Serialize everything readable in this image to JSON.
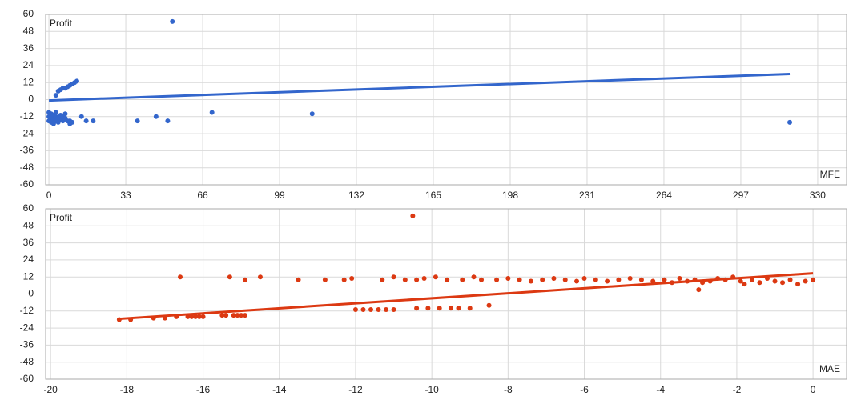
{
  "chart_data": [
    {
      "type": "scatter",
      "y_label": "Profit",
      "x_label": "MFE",
      "color": "#3366cc",
      "grid": true,
      "xlim": [
        -1.4,
        342.4
      ],
      "xticks": [
        0,
        33,
        66,
        99,
        132,
        165,
        198,
        231,
        264,
        297,
        330
      ],
      "ylim": [
        -60,
        60
      ],
      "yticks": [
        60,
        48,
        36,
        24,
        12,
        0,
        -12,
        -24,
        -36,
        -48,
        -60
      ],
      "x": [
        0,
        0,
        0,
        1,
        1,
        1,
        2,
        2,
        2,
        3,
        3,
        3,
        4,
        4,
        5,
        5,
        6,
        6,
        7,
        7,
        8,
        9,
        9,
        10,
        3,
        4,
        5,
        6,
        7,
        8,
        9,
        10,
        11,
        12,
        14,
        16,
        19,
        38,
        46,
        51,
        53,
        70,
        113,
        318
      ],
      "values": [
        -9,
        -12,
        -15,
        -10,
        -13,
        -16,
        -11,
        -14,
        -17,
        -9,
        -12,
        -15,
        -13,
        -16,
        -11,
        -14,
        -12,
        -15,
        -10,
        -13,
        -15,
        -15,
        -17,
        -16,
        3,
        6,
        7,
        8,
        8,
        9,
        10,
        11,
        12,
        13,
        -12,
        -15,
        -15,
        -15,
        -12,
        -15,
        55,
        -9,
        -10,
        -16
      ],
      "trendline": {
        "x": [
          0,
          318
        ],
        "values": [
          -0.6,
          18
        ]
      }
    },
    {
      "type": "scatter",
      "y_label": "Profit",
      "x_label": "MAE",
      "color": "#dc3912",
      "grid": true,
      "xlim": [
        -20.13,
        0.88
      ],
      "xticks": [
        -20,
        -18,
        -16,
        -14,
        -12,
        -10,
        -8,
        -6,
        -4,
        -2,
        0
      ],
      "ylim": [
        -60,
        60
      ],
      "yticks": [
        60,
        48,
        36,
        24,
        12,
        0,
        -12,
        -24,
        -36,
        -48,
        -60
      ],
      "x": [
        -18.2,
        -17.9,
        -17.3,
        -17.0,
        -16.7,
        -16.6,
        -16.4,
        -16.3,
        -16.2,
        -16.1,
        -16.0,
        -15.5,
        -15.4,
        -15.3,
        -15.2,
        -15.1,
        -15.0,
        -14.9,
        -14.9,
        -14.5,
        -13.5,
        -12.8,
        -12.3,
        -12.1,
        -12.0,
        -11.8,
        -11.6,
        -11.4,
        -11.2,
        -11.0,
        -11.3,
        -11.0,
        -10.7,
        -10.4,
        -10.2,
        -10.5,
        -10.4,
        -10.1,
        -9.8,
        -9.5,
        -9.3,
        -9.0,
        -9.9,
        -9.6,
        -9.2,
        -8.9,
        -8.5,
        -8.7,
        -8.3,
        -8.0,
        -7.7,
        -7.4,
        -7.1,
        -6.8,
        -6.5,
        -6.2,
        -6.0,
        -5.7,
        -5.4,
        -5.1,
        -4.8,
        -4.5,
        -4.2,
        -3.9,
        -3.7,
        -3.5,
        -3.3,
        -3.1,
        -2.9,
        -2.7,
        -2.5,
        -2.3,
        -2.1,
        -1.9,
        -1.8,
        -1.6,
        -1.4,
        -1.2,
        -1.0,
        -0.8,
        -0.6,
        -0.4,
        -0.2,
        0.0,
        -3.0
      ],
      "values": [
        -18,
        -18,
        -17,
        -17,
        -16,
        12,
        -16,
        -16,
        -16,
        -16,
        -16,
        -15,
        -15,
        12,
        -15,
        -15,
        -15,
        -15,
        10,
        12,
        10,
        10,
        10,
        11,
        -11,
        -11,
        -11,
        -11,
        -11,
        -11,
        10,
        12,
        10,
        10,
        11,
        55,
        -10,
        -10,
        -10,
        -10,
        -10,
        -10,
        12,
        10,
        10,
        12,
        -8,
        10,
        10,
        11,
        10,
        9,
        10,
        11,
        10,
        9,
        11,
        10,
        9,
        10,
        11,
        10,
        9,
        10,
        8,
        11,
        9,
        10,
        8,
        9,
        11,
        10,
        12,
        9,
        7,
        10,
        8,
        11,
        9,
        8,
        10,
        7,
        9,
        10,
        3
      ],
      "trendline": {
        "x": [
          -18.2,
          0
        ],
        "values": [
          -17.5,
          14.6
        ]
      }
    }
  ]
}
